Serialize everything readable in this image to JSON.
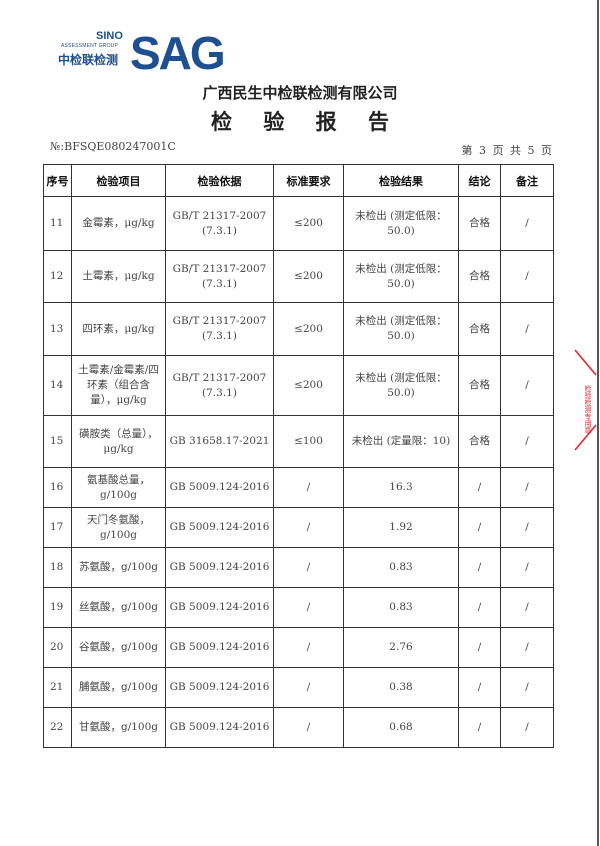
{
  "logo": {
    "sino": "SINO",
    "group": "ASSESSMENT GROUP",
    "cn": "中检联检测",
    "sag": "SAG",
    "color": "#1d4f91"
  },
  "company": "广西民生中检联检测有限公司",
  "title": "检 验 报 告",
  "report_no": "№:BFSQE080247001C",
  "page_info": "第 3 页 共 5 页",
  "table": {
    "headers": [
      "序号",
      "检验项目",
      "检验依据",
      "标准要求",
      "检验结果",
      "结论",
      "备注"
    ],
    "rows": [
      {
        "no": "11",
        "item": "金霉素，μg/kg",
        "basis": "GB/T 21317-2007 (7.3.1)",
        "req": "≤200",
        "result": "未检出 (测定低限：50.0)",
        "conclusion": "合格",
        "note": "/"
      },
      {
        "no": "12",
        "item": "土霉素，μg/kg",
        "basis": "GB/T 21317-2007 (7.3.1)",
        "req": "≤200",
        "result": "未检出 (测定低限：50.0)",
        "conclusion": "合格",
        "note": "/"
      },
      {
        "no": "13",
        "item": "四环素，μg/kg",
        "basis": "GB/T 21317-2007 (7.3.1)",
        "req": "≤200",
        "result": "未检出 (测定低限：50.0)",
        "conclusion": "合格",
        "note": "/"
      },
      {
        "no": "14",
        "item": "土霉素/金霉素/四环素（组合含量），μg/kg",
        "basis": "GB/T 21317-2007 (7.3.1)",
        "req": "≤200",
        "result": "未检出 (测定低限：50.0)",
        "conclusion": "合格",
        "note": "/"
      },
      {
        "no": "15",
        "item": "磺胺类（总量），μg/kg",
        "basis": "GB 31658.17-2021",
        "req": "≤100",
        "result": "未检出 (定量限：10)",
        "conclusion": "合格",
        "note": "/"
      },
      {
        "no": "16",
        "item": "氨基酸总量，g/100g",
        "basis": "GB 5009.124-2016",
        "req": "/",
        "result": "16.3",
        "conclusion": "/",
        "note": "/"
      },
      {
        "no": "17",
        "item": "天门冬氨酸，g/100g",
        "basis": "GB 5009.124-2016",
        "req": "/",
        "result": "1.92",
        "conclusion": "/",
        "note": "/"
      },
      {
        "no": "18",
        "item": "苏氨酸，g/100g",
        "basis": "GB 5009.124-2016",
        "req": "/",
        "result": "0.83",
        "conclusion": "/",
        "note": "/"
      },
      {
        "no": "19",
        "item": "丝氨酸，g/100g",
        "basis": "GB 5009.124-2016",
        "req": "/",
        "result": "0.83",
        "conclusion": "/",
        "note": "/"
      },
      {
        "no": "20",
        "item": "谷氨酸，g/100g",
        "basis": "GB 5009.124-2016",
        "req": "/",
        "result": "2.76",
        "conclusion": "/",
        "note": "/"
      },
      {
        "no": "21",
        "item": "脯氨酸，g/100g",
        "basis": "GB 5009.124-2016",
        "req": "/",
        "result": "0.38",
        "conclusion": "/",
        "note": "/"
      },
      {
        "no": "22",
        "item": "甘氨酸，g/100g",
        "basis": "GB 5009.124-2016",
        "req": "/",
        "result": "0.68",
        "conclusion": "/",
        "note": "/"
      }
    ]
  },
  "stamp_color": "#e0202a"
}
